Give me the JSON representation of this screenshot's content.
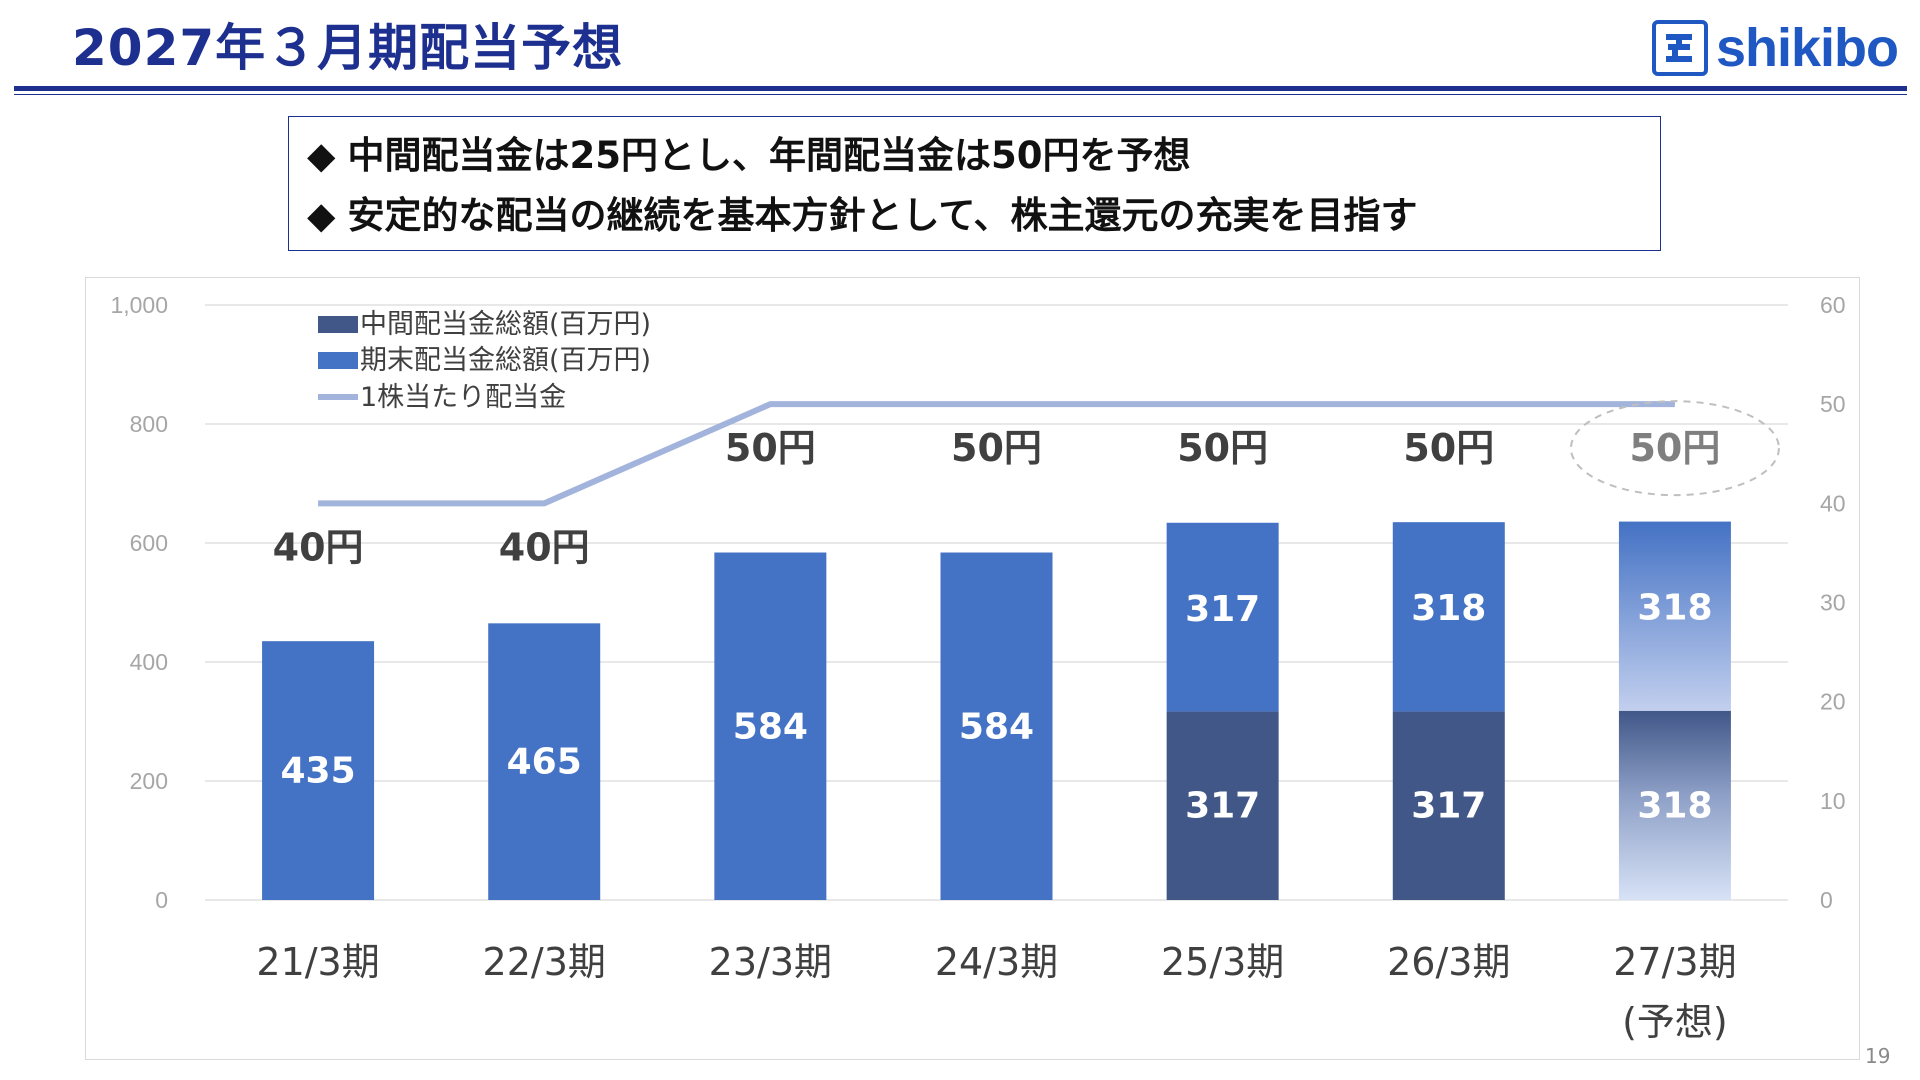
{
  "header": {
    "title": "2027年３月期配当予想",
    "logo_text": "shikibo",
    "page_number": "19"
  },
  "highlights": [
    "中間配当金は25円とし、年間配当金は50円を予想",
    "安定的な配当の継続を基本方針として、株主還元の充実を目指す"
  ],
  "bullet_symbol": "◆",
  "colors": {
    "title": "#1d2f8f",
    "interim_bar": "#415788",
    "yearend_bar": "#4472c4",
    "dps_line": "#a3b4dc",
    "axis_text": "#a6a6a6",
    "grid": "#d9d9d9"
  },
  "chart_data": {
    "type": "bar",
    "stacked": true,
    "categories": [
      "21/3期",
      "22/3期",
      "23/3期",
      "24/3期",
      "25/3期",
      "26/3期",
      "27/3期\n(予想)"
    ],
    "series": [
      {
        "name": "中間配当金総額(百万円)",
        "values": [
          null,
          null,
          null,
          null,
          317,
          317,
          318
        ],
        "axis": "left"
      },
      {
        "name": "期末配当金総額(百万円)",
        "values": [
          435,
          465,
          584,
          584,
          317,
          318,
          318
        ],
        "axis": "left"
      },
      {
        "name": "1株当たり配当金",
        "type": "line",
        "values": [
          40,
          40,
          50,
          50,
          50,
          50,
          50
        ],
        "labels": [
          "40円",
          "40円",
          "50円",
          "50円",
          "50円",
          "50円",
          "50円"
        ],
        "axis": "right"
      }
    ],
    "forecast_index": 6,
    "ylim_left": [
      0,
      1000
    ],
    "yticks_left": [
      "0",
      "200",
      "400",
      "600",
      "800",
      "1,000"
    ],
    "ylim_right": [
      0,
      60
    ],
    "yticks_right": [
      "0",
      "10",
      "20",
      "30",
      "40",
      "50",
      "60"
    ],
    "grid": true,
    "legend": "top-left"
  }
}
